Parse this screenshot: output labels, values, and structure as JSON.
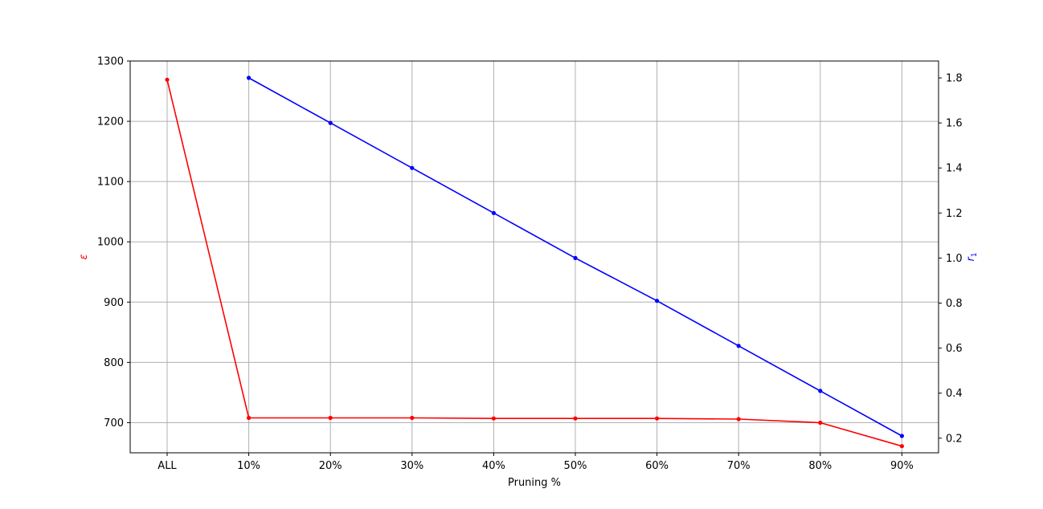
{
  "chart_data": {
    "type": "line",
    "categories": [
      "ALL",
      "10%",
      "20%",
      "30%",
      "40%",
      "50%",
      "60%",
      "70%",
      "80%",
      "90%"
    ],
    "xlabel": "Pruning %",
    "grid": true,
    "left_axis": {
      "label": "ε",
      "color": "#ff0000",
      "ylim": [
        650,
        1300
      ],
      "ticks": [
        700,
        800,
        900,
        1000,
        1100,
        1200,
        1300
      ]
    },
    "right_axis": {
      "label": "r",
      "label_subscript": "1",
      "color": "#0000ff",
      "ylim": [
        0.135,
        1.875
      ],
      "ticks": [
        "0.2",
        "0.4",
        "0.6",
        "0.8",
        "1.0",
        "1.2",
        "1.4",
        "1.6",
        "1.8"
      ]
    },
    "series": [
      {
        "axis": "left",
        "color": "#ff0000",
        "values": [
          1269,
          708,
          708,
          708,
          707,
          707,
          707,
          706,
          700,
          661
        ]
      },
      {
        "axis": "right",
        "color": "#0000ff",
        "values": [
          null,
          1.8,
          1.6,
          1.4,
          1.2,
          1.0,
          0.81,
          0.61,
          0.41,
          0.21
        ]
      }
    ]
  }
}
